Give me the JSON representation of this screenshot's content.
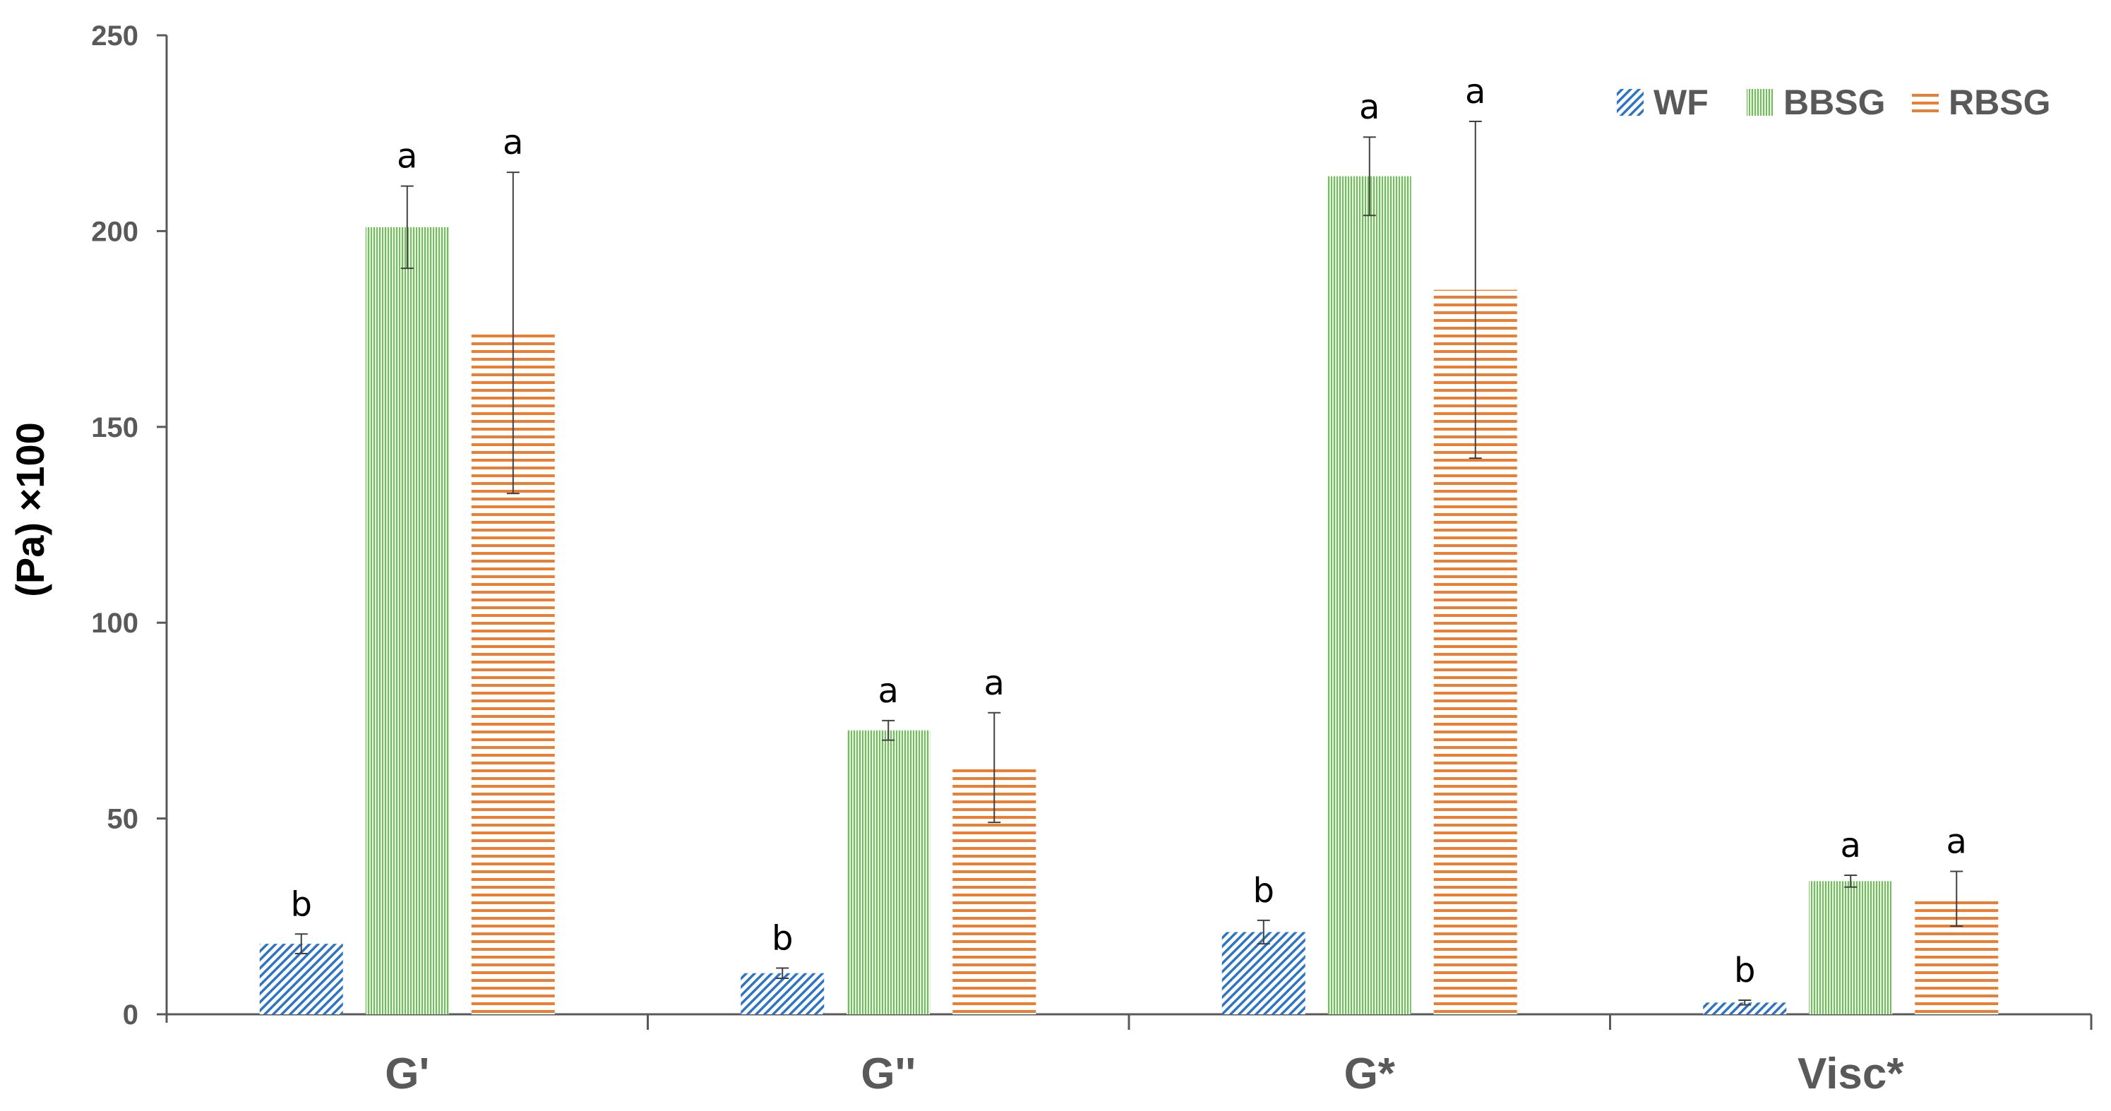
{
  "chart_data": {
    "type": "bar",
    "title": "",
    "xlabel": "",
    "ylabel": "(Pa) ×100",
    "ylim": [
      0,
      250
    ],
    "yticks": [
      0,
      50,
      100,
      150,
      200,
      250
    ],
    "grid": false,
    "legend_position": "top-right",
    "categories": [
      "G'",
      "G''",
      "G*",
      "Visc*"
    ],
    "series": [
      {
        "name": "WF",
        "color": "#2e74c6",
        "pattern": "diagonal-hatch",
        "values": [
          18,
          10.5,
          21,
          3
        ],
        "errors": [
          2.5,
          1.3,
          3,
          0.6
        ],
        "labels": [
          "b",
          "b",
          "b",
          "b"
        ]
      },
      {
        "name": "BBSG",
        "color": "#70c05a",
        "pattern": "vertical-lines",
        "values": [
          201,
          72.5,
          214,
          34
        ],
        "errors": [
          10.5,
          2.5,
          10,
          1.5
        ],
        "labels": [
          "a",
          "a",
          "a",
          "a"
        ]
      },
      {
        "name": "RBSG",
        "color": "#ed7d31",
        "pattern": "horizontal-lines",
        "values": [
          174,
          63,
          185,
          29.5
        ],
        "errors": [
          41,
          14,
          43,
          7
        ],
        "labels": [
          "a",
          "a",
          "a",
          "a"
        ]
      }
    ]
  }
}
